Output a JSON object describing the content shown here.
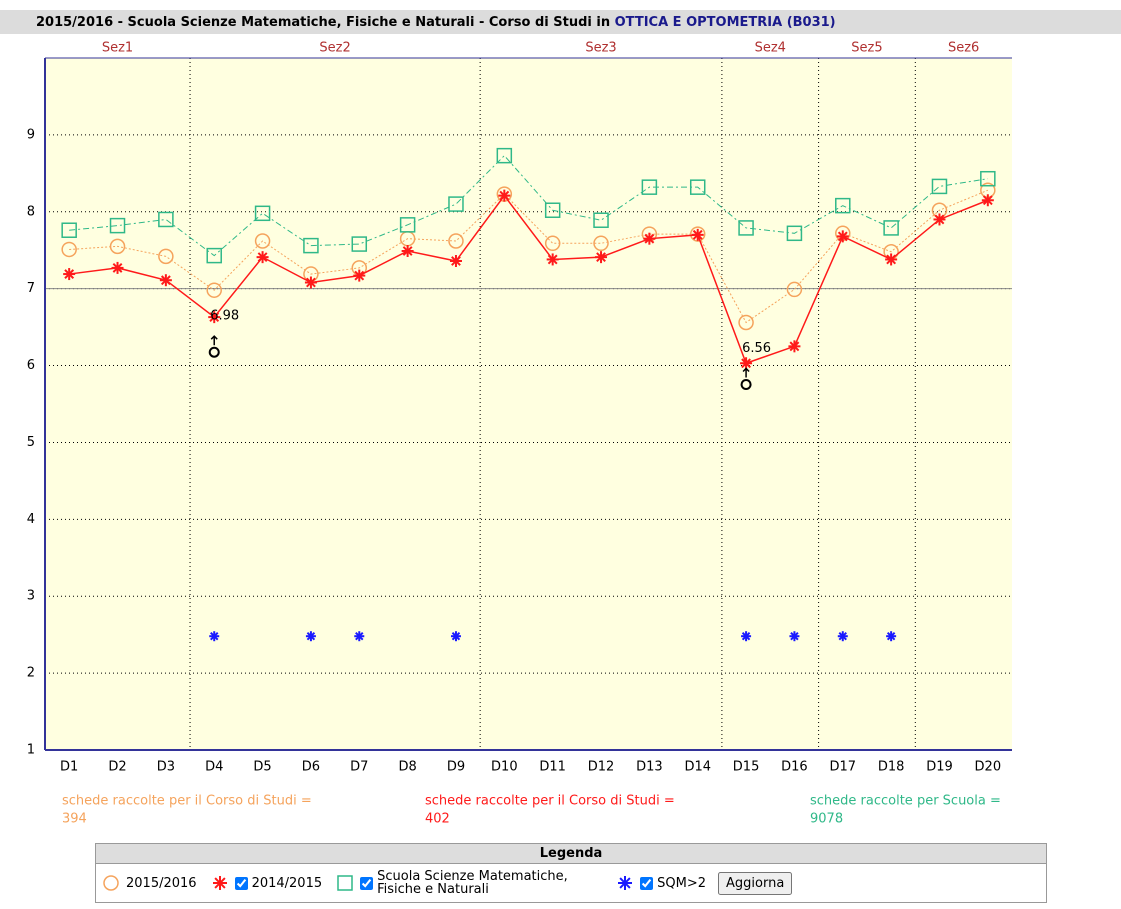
{
  "chart_data": {
    "type": "line",
    "title": "2015/2016 - Scuola Scienze Matematiche, Fisiche e Naturali - Corso di Studi in",
    "title_highlight": "OTTICA E OPTOMETRIA (B031)",
    "categories": [
      "D1",
      "D2",
      "D3",
      "D4",
      "D5",
      "D6",
      "D7",
      "D8",
      "D9",
      "D10",
      "D11",
      "D12",
      "D13",
      "D14",
      "D15",
      "D16",
      "D17",
      "D18",
      "D19",
      "D20"
    ],
    "sections": [
      {
        "label": "Sez1",
        "from": "D1",
        "to": "D3"
      },
      {
        "label": "Sez2",
        "from": "D4",
        "to": "D9"
      },
      {
        "label": "Sez3",
        "from": "D10",
        "to": "D14"
      },
      {
        "label": "Sez4",
        "from": "D15",
        "to": "D16"
      },
      {
        "label": "Sez5",
        "from": "D17",
        "to": "D18"
      },
      {
        "label": "Sez6",
        "from": "D19",
        "to": "D20"
      }
    ],
    "series": [
      {
        "name": "2015/2016",
        "color": "#f5a35c",
        "marker": "circle",
        "values": [
          7.51,
          7.55,
          7.42,
          6.98,
          7.62,
          7.19,
          7.27,
          7.65,
          7.62,
          8.23,
          7.59,
          7.59,
          7.71,
          7.71,
          6.56,
          6.99,
          7.72,
          7.48,
          8.02,
          8.28
        ]
      },
      {
        "name": "2014/2015",
        "color": "#ff1a1a",
        "marker": "asterisk",
        "values": [
          7.19,
          7.27,
          7.11,
          6.63,
          7.41,
          7.08,
          7.17,
          7.49,
          7.36,
          8.21,
          7.38,
          7.41,
          7.65,
          7.7,
          6.03,
          6.25,
          7.68,
          7.38,
          7.9,
          8.15
        ]
      },
      {
        "name": "Scuola Scienze Matematiche, Fisiche e Naturali",
        "color": "#2fb888",
        "marker": "square",
        "values": [
          7.76,
          7.82,
          7.9,
          7.43,
          7.98,
          7.56,
          7.58,
          7.83,
          8.1,
          8.73,
          8.02,
          7.89,
          8.32,
          8.32,
          7.79,
          7.72,
          8.08,
          7.79,
          8.33,
          8.43
        ]
      },
      {
        "name": "SQM>2",
        "color": "#1a1aff",
        "marker": "asterisk",
        "values": [
          null,
          null,
          null,
          2.48,
          null,
          2.48,
          2.48,
          null,
          2.48,
          null,
          null,
          null,
          null,
          null,
          2.48,
          2.48,
          2.48,
          2.48,
          null,
          null
        ]
      }
    ],
    "annotations": [
      {
        "x": "D4",
        "label": "6.98"
      },
      {
        "x": "D15",
        "label": "6.56"
      }
    ],
    "ylim": [
      1,
      10
    ],
    "yticks": [
      1,
      2,
      3,
      4,
      5,
      6,
      7,
      8,
      9
    ],
    "reference_line": 7,
    "grid": true,
    "counts": [
      {
        "label": "schede raccolte per il Corso di Studi =",
        "value": 394,
        "color": "#f5a35c"
      },
      {
        "label": "schede raccolte per il Corso di Studi =",
        "value": 402,
        "color": "#ff1a1a"
      },
      {
        "label": "schede raccolte per Scuola =",
        "value": 9078,
        "color": "#2fb888"
      }
    ],
    "legend_title": "Legenda",
    "button": "Aggiorna"
  }
}
